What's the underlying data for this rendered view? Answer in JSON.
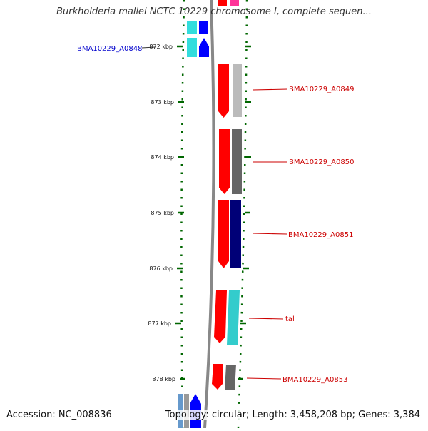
{
  "title": "Burkholderia mallei NCTC 10229 chromosome I, complete sequen...",
  "footer": {
    "accession": "Accession: NC_008836",
    "summary": "Topology: circular; Length: 3,458,208 bp; Genes: 3,384"
  },
  "ticks": [
    {
      "label": "872 kbp",
      "kbp": 872
    },
    {
      "label": "873 kbp",
      "kbp": 873
    },
    {
      "label": "874 kbp",
      "kbp": 874
    },
    {
      "label": "875 kbp",
      "kbp": 875
    },
    {
      "label": "876 kbp",
      "kbp": 876
    },
    {
      "label": "877 kbp",
      "kbp": 877
    },
    {
      "label": "878 kbp",
      "kbp": 878
    }
  ],
  "genes": [
    {
      "name": "BMA10229_A0848",
      "side": "left",
      "color": "#0000cc"
    },
    {
      "name": "BMA10229_A0849",
      "side": "right",
      "color": "#cc0000"
    },
    {
      "name": "BMA10229_A0850",
      "side": "right",
      "color": "#cc0000"
    },
    {
      "name": "BMA10229_A0851",
      "side": "right",
      "color": "#cc0000"
    },
    {
      "name": "tal",
      "side": "right",
      "color": "#cc0000"
    },
    {
      "name": "BMA10229_A0853",
      "side": "right",
      "color": "#cc0000"
    }
  ],
  "colors": {
    "tick": "#006600",
    "backbone": "#888888",
    "gene_forward": "#ff0000",
    "gene_reverse": "#0000ff",
    "cyan": "#33dddd",
    "gray_light": "#bbbbbb",
    "gray_dark": "#666666",
    "navy": "#000077"
  }
}
